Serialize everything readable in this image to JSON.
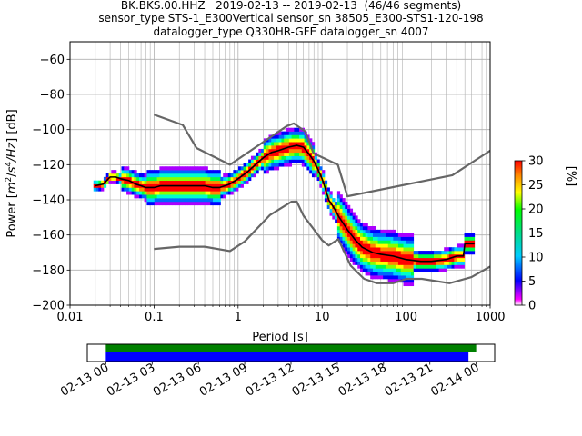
{
  "titles": {
    "line1": "BK.BKS.00.HHZ   2019-02-13 -- 2019-02-13  (46/46 segments)",
    "line2": "sensor_type STS-1_E300Vertical sensor_sn 38505_E300-STS1-120-198",
    "line3": "datalogger_type Q330HR-GFE datalogger_sn 4007"
  },
  "chart_data": [
    {
      "type": "heatmap",
      "title": "",
      "xlabel": "Period [s]",
      "ylabel": "Power [m²/s⁴/Hz] [dB]",
      "ylabel_parts": {
        "prefix": "Power [",
        "m": "m",
        "sup2": "2",
        "slash": "/",
        "s": "s",
        "sup4": "4",
        "hz": "/Hz",
        "suffix": "] [dB]"
      },
      "x_scale": "log",
      "xlim": [
        0.01,
        1000
      ],
      "ylim": [
        -200,
        -50
      ],
      "x_ticks": [
        {
          "value": 0.01,
          "label": "0.01"
        },
        {
          "value": 0.1,
          "label": "0.1"
        },
        {
          "value": 1,
          "label": "1"
        },
        {
          "value": 10,
          "label": "10"
        },
        {
          "value": 100,
          "label": "100"
        },
        {
          "value": 1000,
          "label": "1000"
        }
      ],
      "y_ticks": [
        {
          "value": -60,
          "label": "−60"
        },
        {
          "value": -80,
          "label": "−80"
        },
        {
          "value": -100,
          "label": "−100"
        },
        {
          "value": -120,
          "label": "−120"
        },
        {
          "value": -140,
          "label": "−140"
        },
        {
          "value": -160,
          "label": "−160"
        },
        {
          "value": -180,
          "label": "−180"
        },
        {
          "value": -200,
          "label": "−200"
        }
      ],
      "grid": true,
      "series": [
        {
          "role": "mode",
          "color": "#000000",
          "points": [
            [
              0.02,
              -132
            ],
            [
              0.025,
              -131
            ],
            [
              0.03,
              -127
            ],
            [
              0.035,
              -127
            ],
            [
              0.04,
              -128
            ],
            [
              0.05,
              -129
            ],
            [
              0.06,
              -131
            ],
            [
              0.07,
              -132
            ],
            [
              0.08,
              -133
            ],
            [
              0.1,
              -133
            ],
            [
              0.12,
              -132
            ],
            [
              0.15,
              -132
            ],
            [
              0.2,
              -132
            ],
            [
              0.3,
              -132
            ],
            [
              0.4,
              -132
            ],
            [
              0.5,
              -133
            ],
            [
              0.6,
              -133
            ],
            [
              0.7,
              -132
            ],
            [
              0.8,
              -131
            ],
            [
              1,
              -128
            ],
            [
              1.3,
              -124
            ],
            [
              1.7,
              -119
            ],
            [
              2,
              -116
            ],
            [
              2.5,
              -113
            ],
            [
              3,
              -112
            ],
            [
              4,
              -110
            ],
            [
              5,
              -109
            ],
            [
              6,
              -110
            ],
            [
              7,
              -114
            ],
            [
              8,
              -118
            ],
            [
              9,
              -123
            ],
            [
              10,
              -128
            ],
            [
              11,
              -134
            ],
            [
              12,
              -140
            ],
            [
              14,
              -145
            ],
            [
              16,
              -150
            ],
            [
              20,
              -157
            ],
            [
              25,
              -163
            ],
            [
              30,
              -167
            ],
            [
              40,
              -170
            ],
            [
              50,
              -171
            ],
            [
              70,
              -172
            ],
            [
              100,
              -174
            ],
            [
              150,
              -175
            ],
            [
              200,
              -175
            ],
            [
              300,
              -174
            ],
            [
              400,
              -172
            ],
            [
              480,
              -172
            ],
            [
              500,
              -165
            ],
            [
              600,
              -165
            ],
            [
              650,
              -165
            ]
          ]
        },
        {
          "role": "noise-model-high",
          "color": "#666666",
          "points": [
            [
              0.1,
              -91.5
            ],
            [
              0.22,
              -97.4
            ],
            [
              0.32,
              -110.5
            ],
            [
              0.8,
              -120
            ],
            [
              3.8,
              -98
            ],
            [
              4.6,
              -96.5
            ],
            [
              6.3,
              -101
            ],
            [
              7.9,
              -113.5
            ],
            [
              15.4,
              -120
            ],
            [
              20,
              -138
            ],
            [
              354.8,
              -126
            ],
            [
              1000,
              -112
            ]
          ]
        },
        {
          "role": "noise-model-low",
          "color": "#666666",
          "points": [
            [
              0.1,
              -168
            ],
            [
              0.2,
              -166.7
            ],
            [
              0.4,
              -166.7
            ],
            [
              0.8,
              -169.2
            ],
            [
              1.2,
              -163.7
            ],
            [
              2.4,
              -148.6
            ],
            [
              4.3,
              -141.1
            ],
            [
              5,
              -141
            ],
            [
              6,
              -149
            ],
            [
              10,
              -163
            ],
            [
              12,
              -166
            ],
            [
              15.6,
              -162.4
            ],
            [
              21.9,
              -177.5
            ],
            [
              31.6,
              -185
            ],
            [
              45,
              -187.5
            ],
            [
              70,
              -187.5
            ],
            [
              101,
              -185
            ],
            [
              154,
              -185
            ],
            [
              328,
              -187.5
            ],
            [
              600,
              -184
            ],
            [
              1000,
              -178
            ]
          ]
        }
      ],
      "colorbar": {
        "label": "[%]",
        "range": [
          0,
          30
        ],
        "ticks": [
          {
            "value": 0,
            "label": "0"
          },
          {
            "value": 5,
            "label": "5"
          },
          {
            "value": 10,
            "label": "10"
          },
          {
            "value": 15,
            "label": "15"
          },
          {
            "value": 20,
            "label": "20"
          },
          {
            "value": 25,
            "label": "25"
          },
          {
            "value": 30,
            "label": "30"
          }
        ]
      }
    },
    {
      "type": "bar",
      "title": "",
      "orientation": "horizontal",
      "xlabel": "",
      "ylabel": "",
      "time_ticks": [
        {
          "value": 0,
          "label": "02-13 00"
        },
        {
          "value": 3,
          "label": "02-13 03"
        },
        {
          "value": 6,
          "label": "02-13 06"
        },
        {
          "value": 9,
          "label": "02-13 09"
        },
        {
          "value": 12,
          "label": "02-13 12"
        },
        {
          "value": 15,
          "label": "02-13 15"
        },
        {
          "value": 18,
          "label": "02-13 18"
        },
        {
          "value": 21,
          "label": "02-13 21"
        },
        {
          "value": 24,
          "label": "02-14 00"
        }
      ],
      "xlim_hours": [
        -1.2,
        25.2
      ],
      "series": [
        {
          "role": "data-coverage",
          "color": "#008000",
          "start_hours": 0,
          "end_hours": 24.0
        },
        {
          "role": "psd-coverage",
          "color": "#0000ff",
          "start_hours": 0,
          "end_hours": 23.5
        }
      ]
    }
  ]
}
